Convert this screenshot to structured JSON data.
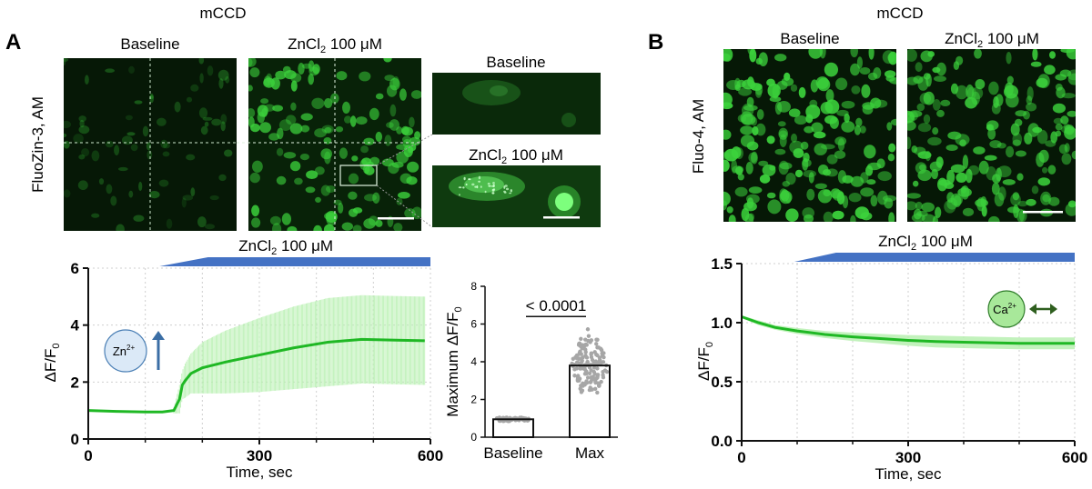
{
  "panel_a": {
    "letter": "A",
    "group_label": "mCCD",
    "indicator_label": "FluoZin-3, AM",
    "images": {
      "baseline_title": "Baseline",
      "zinc_title_prefix": "ZnCl",
      "zinc_title_sub": "2",
      "zinc_title_suffix": " 100 μM",
      "inset_baseline_title": "Baseline",
      "inset_zinc_title_prefix": "ZnCl",
      "inset_zinc_title_sub": "2",
      "inset_zinc_title_suffix": " 100 μM"
    },
    "ion_badge": {
      "base": "Zn",
      "sup": "2+",
      "arrow": "↑",
      "fill": "#dbe9f7",
      "stroke": "#4a7fb5"
    }
  },
  "panel_b": {
    "letter": "B",
    "group_label": "mCCD",
    "indicator_label": "Fluo-4, AM",
    "images": {
      "baseline_title": "Baseline",
      "zinc_title_prefix": "ZnCl",
      "zinc_title_sub": "2",
      "zinc_title_suffix": " 100 μM"
    },
    "ion_badge": {
      "base": "Ca",
      "sup": "2+",
      "arrow": "↔",
      "fill": "#a8e89a",
      "stroke": "#2f7d2a"
    }
  },
  "colors": {
    "trace_green": "#1fb824",
    "band_green": "#b7f0b0",
    "bar_blue": "#4472c4",
    "micrograph_bg": "#061806",
    "cell_green": "#3cd23c"
  },
  "chart_data": [
    {
      "id": "a-trace",
      "type": "line",
      "title_prefix": "ZnCl",
      "title_sub": "2",
      "title_suffix": " 100 μM",
      "xlabel": "Time, sec",
      "ylabel_main": "ΔF/F",
      "ylabel_sub": "0",
      "xlim": [
        0,
        600
      ],
      "ylim": [
        0,
        6
      ],
      "xticks": [
        0,
        300,
        600
      ],
      "xtick_labels": [
        "0",
        "300",
        "600"
      ],
      "yticks": [
        0,
        2,
        4,
        6
      ],
      "ytick_labels": [
        "0",
        "2",
        "4",
        "6"
      ],
      "treatment_start": 125,
      "treatment_ramp_end": 210,
      "grid": true,
      "series": [
        {
          "name": "FluoZin-3",
          "x": [
            0,
            50,
            100,
            130,
            150,
            160,
            165,
            170,
            180,
            200,
            240,
            300,
            360,
            420,
            480,
            540,
            590
          ],
          "y": [
            1.0,
            0.97,
            0.95,
            0.95,
            1.0,
            1.4,
            1.9,
            2.05,
            2.3,
            2.5,
            2.7,
            2.95,
            3.2,
            3.4,
            3.5,
            3.47,
            3.45
          ],
          "err": [
            0.05,
            0.05,
            0.05,
            0.05,
            0.1,
            0.5,
            0.5,
            0.6,
            0.7,
            0.9,
            1.1,
            1.3,
            1.45,
            1.55,
            1.55,
            1.55,
            1.55
          ]
        }
      ]
    },
    {
      "id": "a-bars",
      "type": "bar",
      "ylabel_main": "Maximum ΔF/F",
      "ylabel_sub": "0",
      "categories": [
        "Baseline",
        "Max"
      ],
      "values": [
        0.95,
        3.8
      ],
      "ylim": [
        0,
        8
      ],
      "yticks": [
        0,
        2,
        4,
        6,
        8
      ],
      "ytick_labels": [
        "0",
        "2",
        "4",
        "6",
        "8"
      ],
      "significance": "< 0.0001"
    },
    {
      "id": "b-trace",
      "type": "line",
      "title_prefix": "ZnCl",
      "title_sub": "2",
      "title_suffix": " 100 μM",
      "xlabel": "Time, sec",
      "ylabel_main": "ΔF/F",
      "ylabel_sub": "0",
      "xlim": [
        0,
        600
      ],
      "ylim": [
        0,
        1.5
      ],
      "xticks": [
        0,
        300,
        600
      ],
      "xtick_labels": [
        "0",
        "300",
        "600"
      ],
      "yticks": [
        0,
        0.5,
        1.0,
        1.5
      ],
      "ytick_labels": [
        "0.0",
        "0.5",
        "1.0",
        "1.5"
      ],
      "treatment_start": 95,
      "treatment_ramp_end": 170,
      "grid": true,
      "series": [
        {
          "name": "Fluo-4",
          "x": [
            0,
            30,
            60,
            100,
            150,
            200,
            250,
            300,
            350,
            400,
            450,
            500,
            550,
            600
          ],
          "y": [
            1.05,
            1.0,
            0.96,
            0.93,
            0.9,
            0.88,
            0.865,
            0.85,
            0.84,
            0.835,
            0.83,
            0.825,
            0.825,
            0.825
          ],
          "err": [
            0.01,
            0.02,
            0.02,
            0.025,
            0.03,
            0.035,
            0.04,
            0.045,
            0.05,
            0.05,
            0.05,
            0.05,
            0.05,
            0.05
          ]
        }
      ]
    }
  ]
}
